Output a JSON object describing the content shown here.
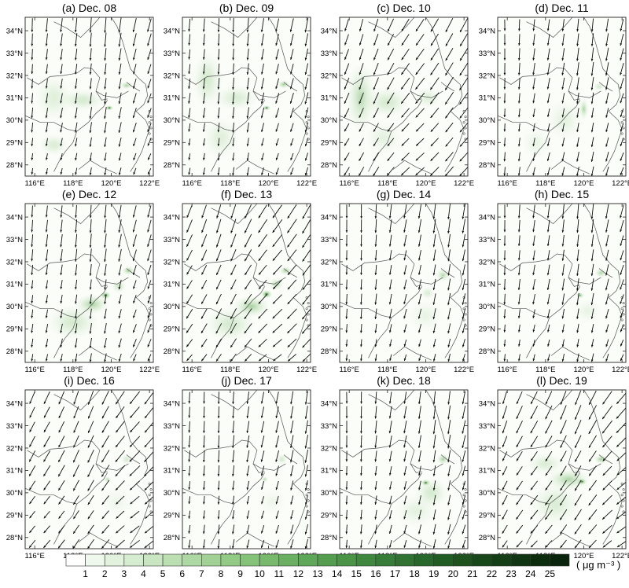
{
  "panels": [
    {
      "title": "(a) Dec. 08",
      "blobs": [
        [
          119.9,
          30.55,
          0.22,
          0.12,
          1.0
        ],
        [
          120.8,
          31.55,
          0.35,
          0.18,
          0.55
        ],
        [
          118.5,
          30.9,
          1.2,
          0.5,
          0.35
        ],
        [
          117.0,
          31.0,
          1.0,
          1.1,
          0.25
        ],
        [
          117.0,
          28.9,
          0.8,
          0.5,
          0.3
        ]
      ]
    },
    {
      "title": "(b) Dec. 09",
      "blobs": [
        [
          119.9,
          30.55,
          0.22,
          0.12,
          0.95
        ],
        [
          120.8,
          31.6,
          0.35,
          0.2,
          0.6
        ],
        [
          116.8,
          31.8,
          0.8,
          1.3,
          0.35
        ],
        [
          118.3,
          31.0,
          1.2,
          0.6,
          0.3
        ],
        [
          117.5,
          29.2,
          1.0,
          1.0,
          0.25
        ]
      ]
    },
    {
      "title": "(c) Dec. 10",
      "blobs": [
        [
          116.6,
          31.0,
          0.8,
          1.6,
          0.45
        ],
        [
          118.0,
          30.8,
          1.2,
          0.7,
          0.35
        ],
        [
          120.1,
          31.0,
          0.7,
          0.5,
          0.25
        ],
        [
          117.8,
          29.2,
          1.0,
          0.8,
          0.2
        ]
      ]
    },
    {
      "title": "(d) Dec. 11",
      "blobs": [
        [
          120.0,
          30.5,
          0.25,
          0.5,
          0.5
        ],
        [
          120.8,
          31.5,
          0.3,
          0.2,
          0.35
        ],
        [
          119.0,
          30.0,
          1.0,
          1.0,
          0.2
        ],
        [
          117.5,
          29.0,
          0.8,
          0.8,
          0.15
        ]
      ]
    },
    {
      "title": "(e) Dec. 12",
      "blobs": [
        [
          119.7,
          30.5,
          0.28,
          0.18,
          1.0
        ],
        [
          119.0,
          30.1,
          0.9,
          0.45,
          0.55
        ],
        [
          118.0,
          29.3,
          1.4,
          0.8,
          0.35
        ],
        [
          120.9,
          31.6,
          0.35,
          0.2,
          0.6
        ],
        [
          120.4,
          30.9,
          0.4,
          0.3,
          0.4
        ]
      ]
    },
    {
      "title": "(f) Dec. 13",
      "blobs": [
        [
          119.9,
          30.55,
          0.3,
          0.2,
          1.0
        ],
        [
          119.1,
          30.0,
          1.0,
          0.5,
          0.55
        ],
        [
          118.0,
          29.2,
          1.4,
          0.8,
          0.35
        ],
        [
          120.9,
          31.6,
          0.35,
          0.2,
          0.55
        ],
        [
          120.4,
          31.0,
          0.4,
          0.3,
          0.45
        ]
      ]
    },
    {
      "title": "(g) Dec. 14",
      "blobs": [
        [
          120.9,
          31.4,
          0.4,
          0.3,
          0.45
        ],
        [
          120.1,
          30.6,
          0.4,
          0.3,
          0.3
        ],
        [
          120.0,
          29.6,
          1.0,
          0.8,
          0.15
        ]
      ]
    },
    {
      "title": "(h) Dec. 15",
      "blobs": [
        [
          119.8,
          30.5,
          0.22,
          0.15,
          0.7
        ],
        [
          120.9,
          31.5,
          0.35,
          0.22,
          0.5
        ],
        [
          120.2,
          29.8,
          0.8,
          0.6,
          0.15
        ]
      ]
    },
    {
      "title": "(i) Dec. 16",
      "blobs": [
        [
          119.8,
          30.6,
          0.2,
          0.15,
          0.45
        ],
        [
          120.8,
          31.5,
          0.3,
          0.25,
          0.35
        ],
        [
          120.3,
          29.6,
          0.9,
          0.8,
          0.1
        ]
      ]
    },
    {
      "title": "(j) Dec. 17",
      "blobs": [
        [
          119.8,
          30.6,
          0.2,
          0.15,
          0.45
        ],
        [
          120.7,
          31.5,
          0.3,
          0.25,
          0.35
        ],
        [
          120.2,
          29.6,
          0.8,
          0.7,
          0.1
        ]
      ]
    },
    {
      "title": "(k) Dec. 18",
      "blobs": [
        [
          120.0,
          30.45,
          0.25,
          0.15,
          0.95
        ],
        [
          120.9,
          31.5,
          0.35,
          0.25,
          0.55
        ],
        [
          120.3,
          30.0,
          0.9,
          0.7,
          0.35
        ],
        [
          119.5,
          29.2,
          1.2,
          0.8,
          0.2
        ]
      ]
    },
    {
      "title": "(l) Dec. 19",
      "blobs": [
        [
          119.9,
          30.5,
          0.25,
          0.15,
          1.0
        ],
        [
          120.9,
          31.5,
          0.35,
          0.22,
          0.6
        ],
        [
          119.2,
          30.6,
          1.2,
          0.5,
          0.5
        ],
        [
          118.5,
          29.5,
          1.4,
          1.0,
          0.3
        ],
        [
          118.0,
          31.3,
          1.0,
          0.5,
          0.3
        ]
      ]
    }
  ],
  "axes": {
    "x_ticks": [
      "116°E",
      "118°E",
      "120°E",
      "122°E"
    ],
    "x_values": [
      116,
      118,
      120,
      122
    ],
    "y_ticks": [
      "28°N",
      "29°N",
      "30°N",
      "31°N",
      "32°N",
      "33°N",
      "34°N"
    ],
    "y_values": [
      28,
      29,
      30,
      31,
      32,
      33,
      34
    ],
    "lon_range": [
      115.5,
      122.2
    ],
    "lat_range": [
      27.5,
      34.6
    ]
  },
  "colorbar": {
    "labels": [
      "1",
      "2",
      "3",
      "4",
      "5",
      "6",
      "7",
      "8",
      "9",
      "10",
      "11",
      "12",
      "13",
      "14",
      "15",
      "16",
      "17",
      "18",
      "19",
      "20",
      "21",
      "22",
      "23",
      "24",
      "25"
    ],
    "colors": [
      "#ffffff",
      "#eff8ec",
      "#e3f2de",
      "#d6ecd0",
      "#c9e5c1",
      "#bcdfb2",
      "#aed8a3",
      "#a1d194",
      "#93ca86",
      "#85c279",
      "#78b96d",
      "#6bb062",
      "#5fa758",
      "#549d4f",
      "#4a9347",
      "#408840",
      "#377d39",
      "#2f7232",
      "#28672b",
      "#225c25",
      "#1d521f",
      "#18481a",
      "#143e16",
      "#103512",
      "#0c2c0e",
      "#09240b"
    ],
    "units": "( μg m⁻³ )"
  }
}
